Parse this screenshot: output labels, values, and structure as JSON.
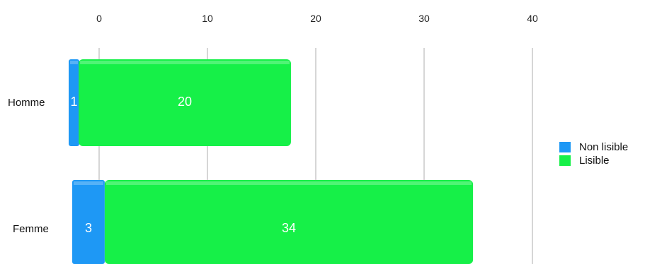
{
  "chart_data": {
    "type": "bar",
    "orientation": "horizontal",
    "stacked": true,
    "categories": [
      "Homme",
      "Femme"
    ],
    "series": [
      {
        "name": "Non lisible",
        "values": [
          1,
          3
        ],
        "color": "#1e98f5"
      },
      {
        "name": "Lisible",
        "values": [
          20,
          34
        ],
        "color": "#16f048"
      }
    ],
    "x_ticks": [
      "0",
      "10",
      "20",
      "30",
      "40"
    ],
    "xlim": [
      0,
      40
    ],
    "grid": true,
    "legend_position": "right"
  }
}
